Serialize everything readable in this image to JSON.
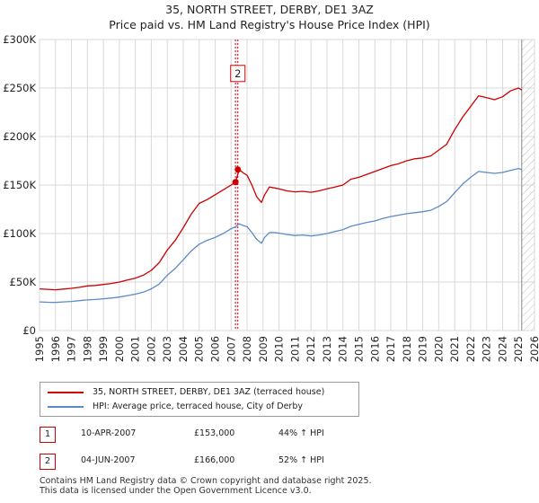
{
  "header": {
    "title_line1": "35, NORTH STREET, DERBY, DE1 3AZ",
    "title_line2": "Price paid vs. HM Land Registry's House Price Index (HPI)"
  },
  "colors": {
    "property": "#cc0000",
    "hpi": "#5b8ac6",
    "grid": "#d9d9d9",
    "plot_bg": "#ffffff",
    "sale_line": "#cc0000"
  },
  "legend": {
    "property_label": "35, NORTH STREET, DERBY, DE1 3AZ (terraced house)",
    "hpi_label": "HPI: Average price, terraced house, City of Derby"
  },
  "sales": [
    {
      "num": "1",
      "date": "10-APR-2007",
      "price": "£153,000",
      "hpi": "44% ↑ HPI"
    },
    {
      "num": "2",
      "date": "04-JUN-2007",
      "price": "£166,000",
      "hpi": "52% ↑ HPI"
    }
  ],
  "footer": {
    "line1": "Contains HM Land Registry data © Crown copyright and database right 2025.",
    "line2": "This data is licensed under the Open Government Licence v3.0."
  },
  "chart_data": {
    "type": "line",
    "title": "35, NORTH STREET, DERBY, DE1 3AZ",
    "subtitle": "Price paid vs. HM Land Registry's House Price Index (HPI)",
    "xlabel": "",
    "ylabel": "",
    "xlim": [
      1995,
      2026
    ],
    "ylim": [
      0,
      300000
    ],
    "x_ticks": [
      "1995",
      "1996",
      "1997",
      "1998",
      "1999",
      "2000",
      "2001",
      "2002",
      "2003",
      "2004",
      "2005",
      "2006",
      "2007",
      "2008",
      "2009",
      "2010",
      "2011",
      "2012",
      "2013",
      "2014",
      "2015",
      "2016",
      "2017",
      "2018",
      "2019",
      "2020",
      "2021",
      "2022",
      "2023",
      "2024",
      "2025",
      "2026"
    ],
    "y_ticks": [
      {
        "value": 0,
        "label": "£0"
      },
      {
        "value": 50000,
        "label": "£50K"
      },
      {
        "value": 100000,
        "label": "£100K"
      },
      {
        "value": 150000,
        "label": "£150K"
      },
      {
        "value": 200000,
        "label": "£200K"
      },
      {
        "value": 250000,
        "label": "£250K"
      },
      {
        "value": 300000,
        "label": "£300K"
      }
    ],
    "grid": true,
    "data_end_year": 2025.2,
    "series": [
      {
        "name": "35, NORTH STREET, DERBY, DE1 3AZ (terraced house)",
        "x": [
          1995.0,
          1995.5,
          1996.0,
          1996.5,
          1997.0,
          1997.5,
          1998.0,
          1998.5,
          1999.0,
          1999.5,
          2000.0,
          2000.5,
          2001.0,
          2001.5,
          2002.0,
          2002.5,
          2003.0,
          2003.5,
          2004.0,
          2004.5,
          2005.0,
          2005.5,
          2006.0,
          2006.5,
          2007.0,
          2007.28,
          2007.5,
          2007.8,
          2008.0,
          2008.3,
          2008.6,
          2008.9,
          2009.1,
          2009.4,
          2009.7,
          2010.0,
          2010.5,
          2011.0,
          2011.5,
          2012.0,
          2012.5,
          2013.0,
          2013.5,
          2014.0,
          2014.5,
          2015.0,
          2015.5,
          2016.0,
          2016.5,
          2017.0,
          2017.5,
          2018.0,
          2018.5,
          2019.0,
          2019.5,
          2020.0,
          2020.5,
          2021.0,
          2021.5,
          2022.0,
          2022.5,
          2023.0,
          2023.5,
          2024.0,
          2024.5,
          2025.0,
          2025.2
        ],
        "values": [
          43000,
          42500,
          42000,
          42800,
          43500,
          44500,
          46000,
          46500,
          47500,
          48500,
          50000,
          52000,
          54000,
          57000,
          62000,
          70000,
          83000,
          93000,
          106000,
          120000,
          131000,
          135000,
          140000,
          145000,
          150000,
          153000,
          166000,
          162000,
          160000,
          150000,
          138000,
          132000,
          140000,
          148000,
          147000,
          146000,
          144000,
          143000,
          143500,
          142500,
          144000,
          146000,
          148000,
          150000,
          156000,
          158000,
          161000,
          164000,
          167000,
          170000,
          172000,
          175000,
          177000,
          178000,
          180000,
          186000,
          192000,
          207000,
          220000,
          231000,
          242000,
          240000,
          238000,
          241000,
          247000,
          250000,
          248000
        ]
      },
      {
        "name": "HPI: Average price, terraced house, City of Derby",
        "x": [
          1995.0,
          1995.5,
          1996.0,
          1996.5,
          1997.0,
          1997.5,
          1998.0,
          1998.5,
          1999.0,
          1999.5,
          2000.0,
          2000.5,
          2001.0,
          2001.5,
          2002.0,
          2002.5,
          2003.0,
          2003.5,
          2004.0,
          2004.5,
          2005.0,
          2005.5,
          2006.0,
          2006.5,
          2007.0,
          2007.28,
          2007.5,
          2007.8,
          2008.0,
          2008.3,
          2008.6,
          2008.9,
          2009.1,
          2009.4,
          2009.7,
          2010.0,
          2010.5,
          2011.0,
          2011.5,
          2012.0,
          2012.5,
          2013.0,
          2013.5,
          2014.0,
          2014.5,
          2015.0,
          2015.5,
          2016.0,
          2016.5,
          2017.0,
          2017.5,
          2018.0,
          2018.5,
          2019.0,
          2019.5,
          2020.0,
          2020.5,
          2021.0,
          2021.5,
          2022.0,
          2022.5,
          2023.0,
          2023.5,
          2024.0,
          2024.5,
          2025.0,
          2025.2
        ],
        "values": [
          29500,
          29200,
          29000,
          29500,
          30000,
          30800,
          31600,
          32000,
          32800,
          33500,
          34500,
          36000,
          37500,
          39500,
          43000,
          48000,
          57000,
          64000,
          73000,
          82000,
          89000,
          93000,
          96000,
          100000,
          105000,
          107000,
          110000,
          108000,
          107000,
          101000,
          94000,
          90000,
          96000,
          101000,
          101000,
          100500,
          99000,
          98000,
          98500,
          97500,
          98500,
          100000,
          102000,
          104000,
          107500,
          109500,
          111500,
          113000,
          115500,
          117500,
          119000,
          120500,
          121500,
          122500,
          124000,
          128000,
          133000,
          142000,
          151000,
          158000,
          164000,
          163000,
          162000,
          163000,
          165000,
          167000,
          166000
        ]
      }
    ],
    "sale_markers": [
      {
        "id": "1",
        "x": 2007.27,
        "value": 153000
      },
      {
        "id": "2",
        "x": 2007.42,
        "value": 166000
      }
    ],
    "annotation_box": {
      "label": "2",
      "x": 2007.42,
      "value": 265000
    }
  }
}
